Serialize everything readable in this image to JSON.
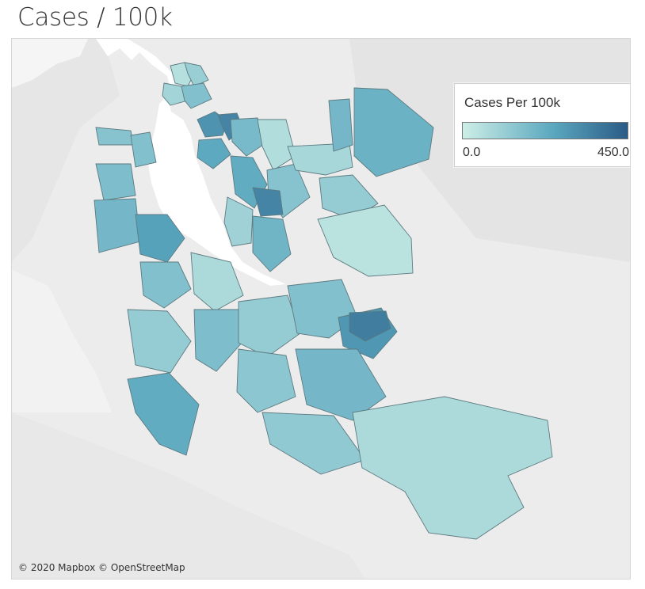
{
  "title": "Cases / 100k",
  "legend": {
    "title": "Cases Per 100k",
    "min_label": "0.0",
    "max_label": "450.0",
    "min_value": 0,
    "max_value": 450,
    "color_low": "#cdeee6",
    "color_mid": "#5aa7bf",
    "color_high": "#2b5b86"
  },
  "attribution": "© 2020 Mapbox © OpenStreetMap",
  "colors": {
    "background": "#ececec",
    "land": "#e3e3e3",
    "water": "#ffffff",
    "border": "#5c7a80"
  },
  "chart_data": {
    "type": "choropleth",
    "metric": "Cases Per 100k",
    "scale": [
      0,
      450
    ],
    "regions": [
      {
        "v": 50
      },
      {
        "v": 110
      },
      {
        "v": 90
      },
      {
        "v": 160
      },
      {
        "v": 300
      },
      {
        "v": 340
      },
      {
        "v": 240
      },
      {
        "v": 180
      },
      {
        "v": 230
      },
      {
        "v": 60
      },
      {
        "v": 150
      },
      {
        "v": 100
      },
      {
        "v": 340
      },
      {
        "v": 200
      },
      {
        "v": 80
      },
      {
        "v": 190
      },
      {
        "v": 210
      },
      {
        "v": 120
      },
      {
        "v": 40
      },
      {
        "v": 150
      },
      {
        "v": 160
      },
      {
        "v": 170
      },
      {
        "v": 190
      },
      {
        "v": 260
      },
      {
        "v": 160
      },
      {
        "v": 120
      },
      {
        "v": 230
      },
      {
        "v": 70
      },
      {
        "v": 170
      },
      {
        "v": 120
      },
      {
        "v": 160
      },
      {
        "v": 290
      },
      {
        "v": 360
      },
      {
        "v": 140
      },
      {
        "v": 190
      },
      {
        "v": 130
      },
      {
        "v": 70
      }
    ]
  }
}
